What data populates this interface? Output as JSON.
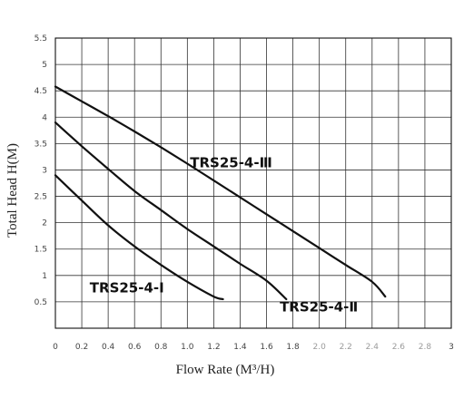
{
  "chart_data": {
    "type": "line",
    "xlabel": "Flow Rate (M³/H)",
    "ylabel": "Total Head H(M)",
    "xlim": [
      0,
      3
    ],
    "ylim": [
      0,
      5.5
    ],
    "x_ticks": [
      "0",
      "0.2",
      "0.4",
      "0.6",
      "0.8",
      "1.0",
      "1.2",
      "1.4",
      "1.6",
      "1.8",
      "2.0",
      "2.2",
      "2.4",
      "2.6",
      "2.8",
      "3"
    ],
    "y_ticks": [
      "0.5",
      "1",
      "1.5",
      "2",
      "2.5",
      "3",
      "3.5",
      "4",
      "4.5",
      "5",
      "5.5"
    ],
    "grid": true,
    "series": [
      {
        "name": "TRS25-4-Ⅲ",
        "x": [
          0,
          0.2,
          0.4,
          0.6,
          0.8,
          1.0,
          1.2,
          1.4,
          1.6,
          1.8,
          2.0,
          2.2,
          2.4,
          2.5
        ],
        "y": [
          4.58,
          4.3,
          4.02,
          3.73,
          3.43,
          3.12,
          2.8,
          2.48,
          2.16,
          1.84,
          1.52,
          1.2,
          0.88,
          0.6
        ]
      },
      {
        "name": "TRS25-4-Ⅱ",
        "x": [
          0,
          0.2,
          0.4,
          0.6,
          0.8,
          1.0,
          1.2,
          1.4,
          1.6,
          1.75
        ],
        "y": [
          3.9,
          3.45,
          3.02,
          2.6,
          2.24,
          1.88,
          1.55,
          1.22,
          0.9,
          0.55
        ]
      },
      {
        "name": "TRS25-4-Ⅰ",
        "x": [
          0,
          0.2,
          0.4,
          0.6,
          0.8,
          1.0,
          1.2,
          1.27
        ],
        "y": [
          2.9,
          2.42,
          1.95,
          1.55,
          1.2,
          0.88,
          0.6,
          0.55
        ]
      }
    ],
    "labels": [
      {
        "text": "TRS25-4-Ⅲ",
        "x": 1.02,
        "y": 3.05
      },
      {
        "text": "TRS25-4-Ⅱ",
        "x": 1.7,
        "y": 0.32
      },
      {
        "text": "TRS25-4-Ⅰ",
        "x": 0.26,
        "y": 0.68
      }
    ]
  }
}
